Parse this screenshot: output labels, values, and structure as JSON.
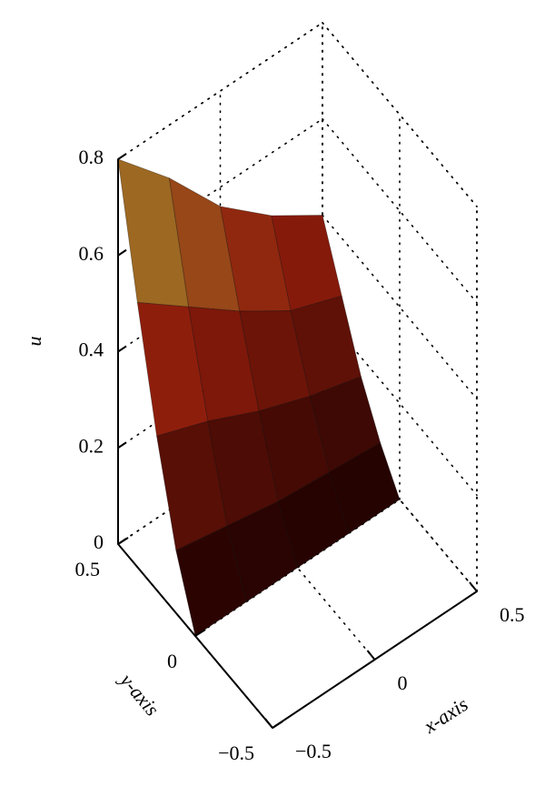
{
  "chart_data": {
    "type": "surface",
    "xlabel": "x-axis",
    "ylabel": "y-axis",
    "zlabel": "u",
    "x": [
      -0.5,
      -0.25,
      0,
      0.25,
      0.5
    ],
    "y": [
      0,
      0.125,
      0.25,
      0.375,
      0.5
    ],
    "z": [
      [
        0,
        0,
        0,
        0,
        0
      ],
      [
        0.13,
        0.11,
        0.09,
        0.08,
        0.07
      ],
      [
        0.32,
        0.28,
        0.23,
        0.19,
        0.16
      ],
      [
        0.55,
        0.47,
        0.39,
        0.32,
        0.28
      ],
      [
        0.8,
        0.69,
        0.56,
        0.47,
        0.4
      ]
    ],
    "colors": [
      "#1a0000",
      "#8e1c0c",
      "#a9a232"
    ],
    "xlim": [
      -0.5,
      0.5
    ],
    "xticks": [
      {
        "value": -0.5,
        "label": "−0.5"
      },
      0,
      0.5
    ],
    "ylim": [
      -0.5,
      0.5
    ],
    "yticks": [
      {
        "value": -0.5,
        "label": "−0.5"
      },
      0,
      0.5
    ],
    "zlim": [
      0,
      0.8
    ],
    "zticks": [
      0,
      0.2,
      0.4,
      0.6,
      0.8
    ],
    "grid": true
  }
}
